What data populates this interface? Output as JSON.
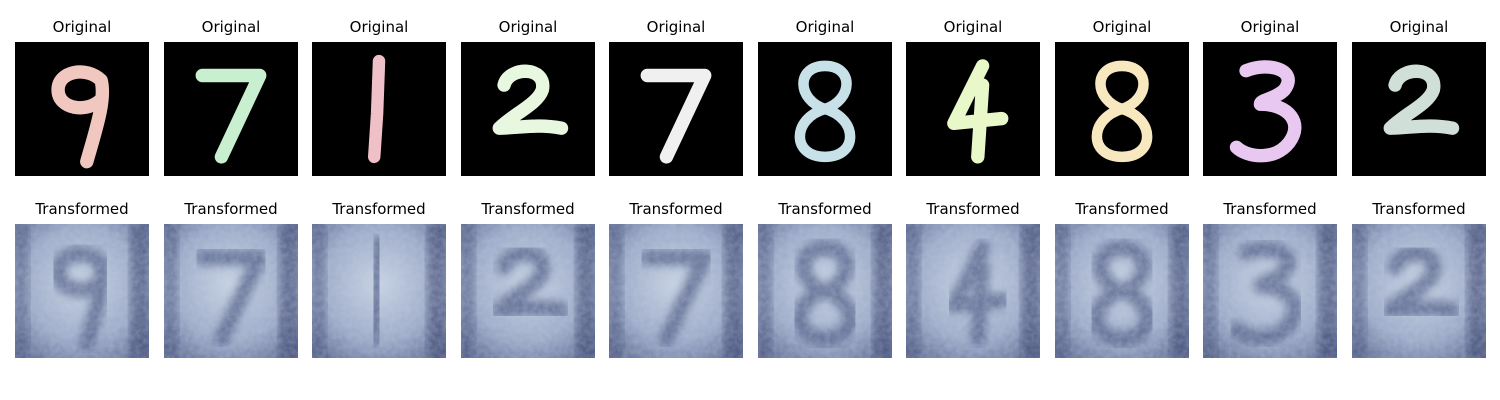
{
  "rows": [
    {
      "label": "Original",
      "panels": [
        {
          "title": "Original",
          "digit": "9",
          "color": "#f0c8c0"
        },
        {
          "title": "Original",
          "digit": "7",
          "color": "#c8f0d0"
        },
        {
          "title": "Original",
          "digit": "1",
          "color": "#f0c0c8"
        },
        {
          "title": "Original",
          "digit": "2",
          "color": "#e8f8e0"
        },
        {
          "title": "Original",
          "digit": "7",
          "color": "#f0f0f0"
        },
        {
          "title": "Original",
          "digit": "8",
          "color": "#c8e0e8"
        },
        {
          "title": "Original",
          "digit": "4",
          "color": "#e8f8c8"
        },
        {
          "title": "Original",
          "digit": "8",
          "color": "#f8e8c0"
        },
        {
          "title": "Original",
          "digit": "3",
          "color": "#e8c8f0"
        },
        {
          "title": "Original",
          "digit": "2",
          "color": "#d0e0d8"
        }
      ]
    },
    {
      "label": "Transformed",
      "panels": [
        {
          "title": "Transformed",
          "digit": "9"
        },
        {
          "title": "Transformed",
          "digit": "7"
        },
        {
          "title": "Transformed",
          "digit": "1"
        },
        {
          "title": "Transformed",
          "digit": "2"
        },
        {
          "title": "Transformed",
          "digit": "7"
        },
        {
          "title": "Transformed",
          "digit": "8"
        },
        {
          "title": "Transformed",
          "digit": "4"
        },
        {
          "title": "Transformed",
          "digit": "8"
        },
        {
          "title": "Transformed",
          "digit": "3"
        },
        {
          "title": "Transformed",
          "digit": "2"
        }
      ]
    }
  ]
}
